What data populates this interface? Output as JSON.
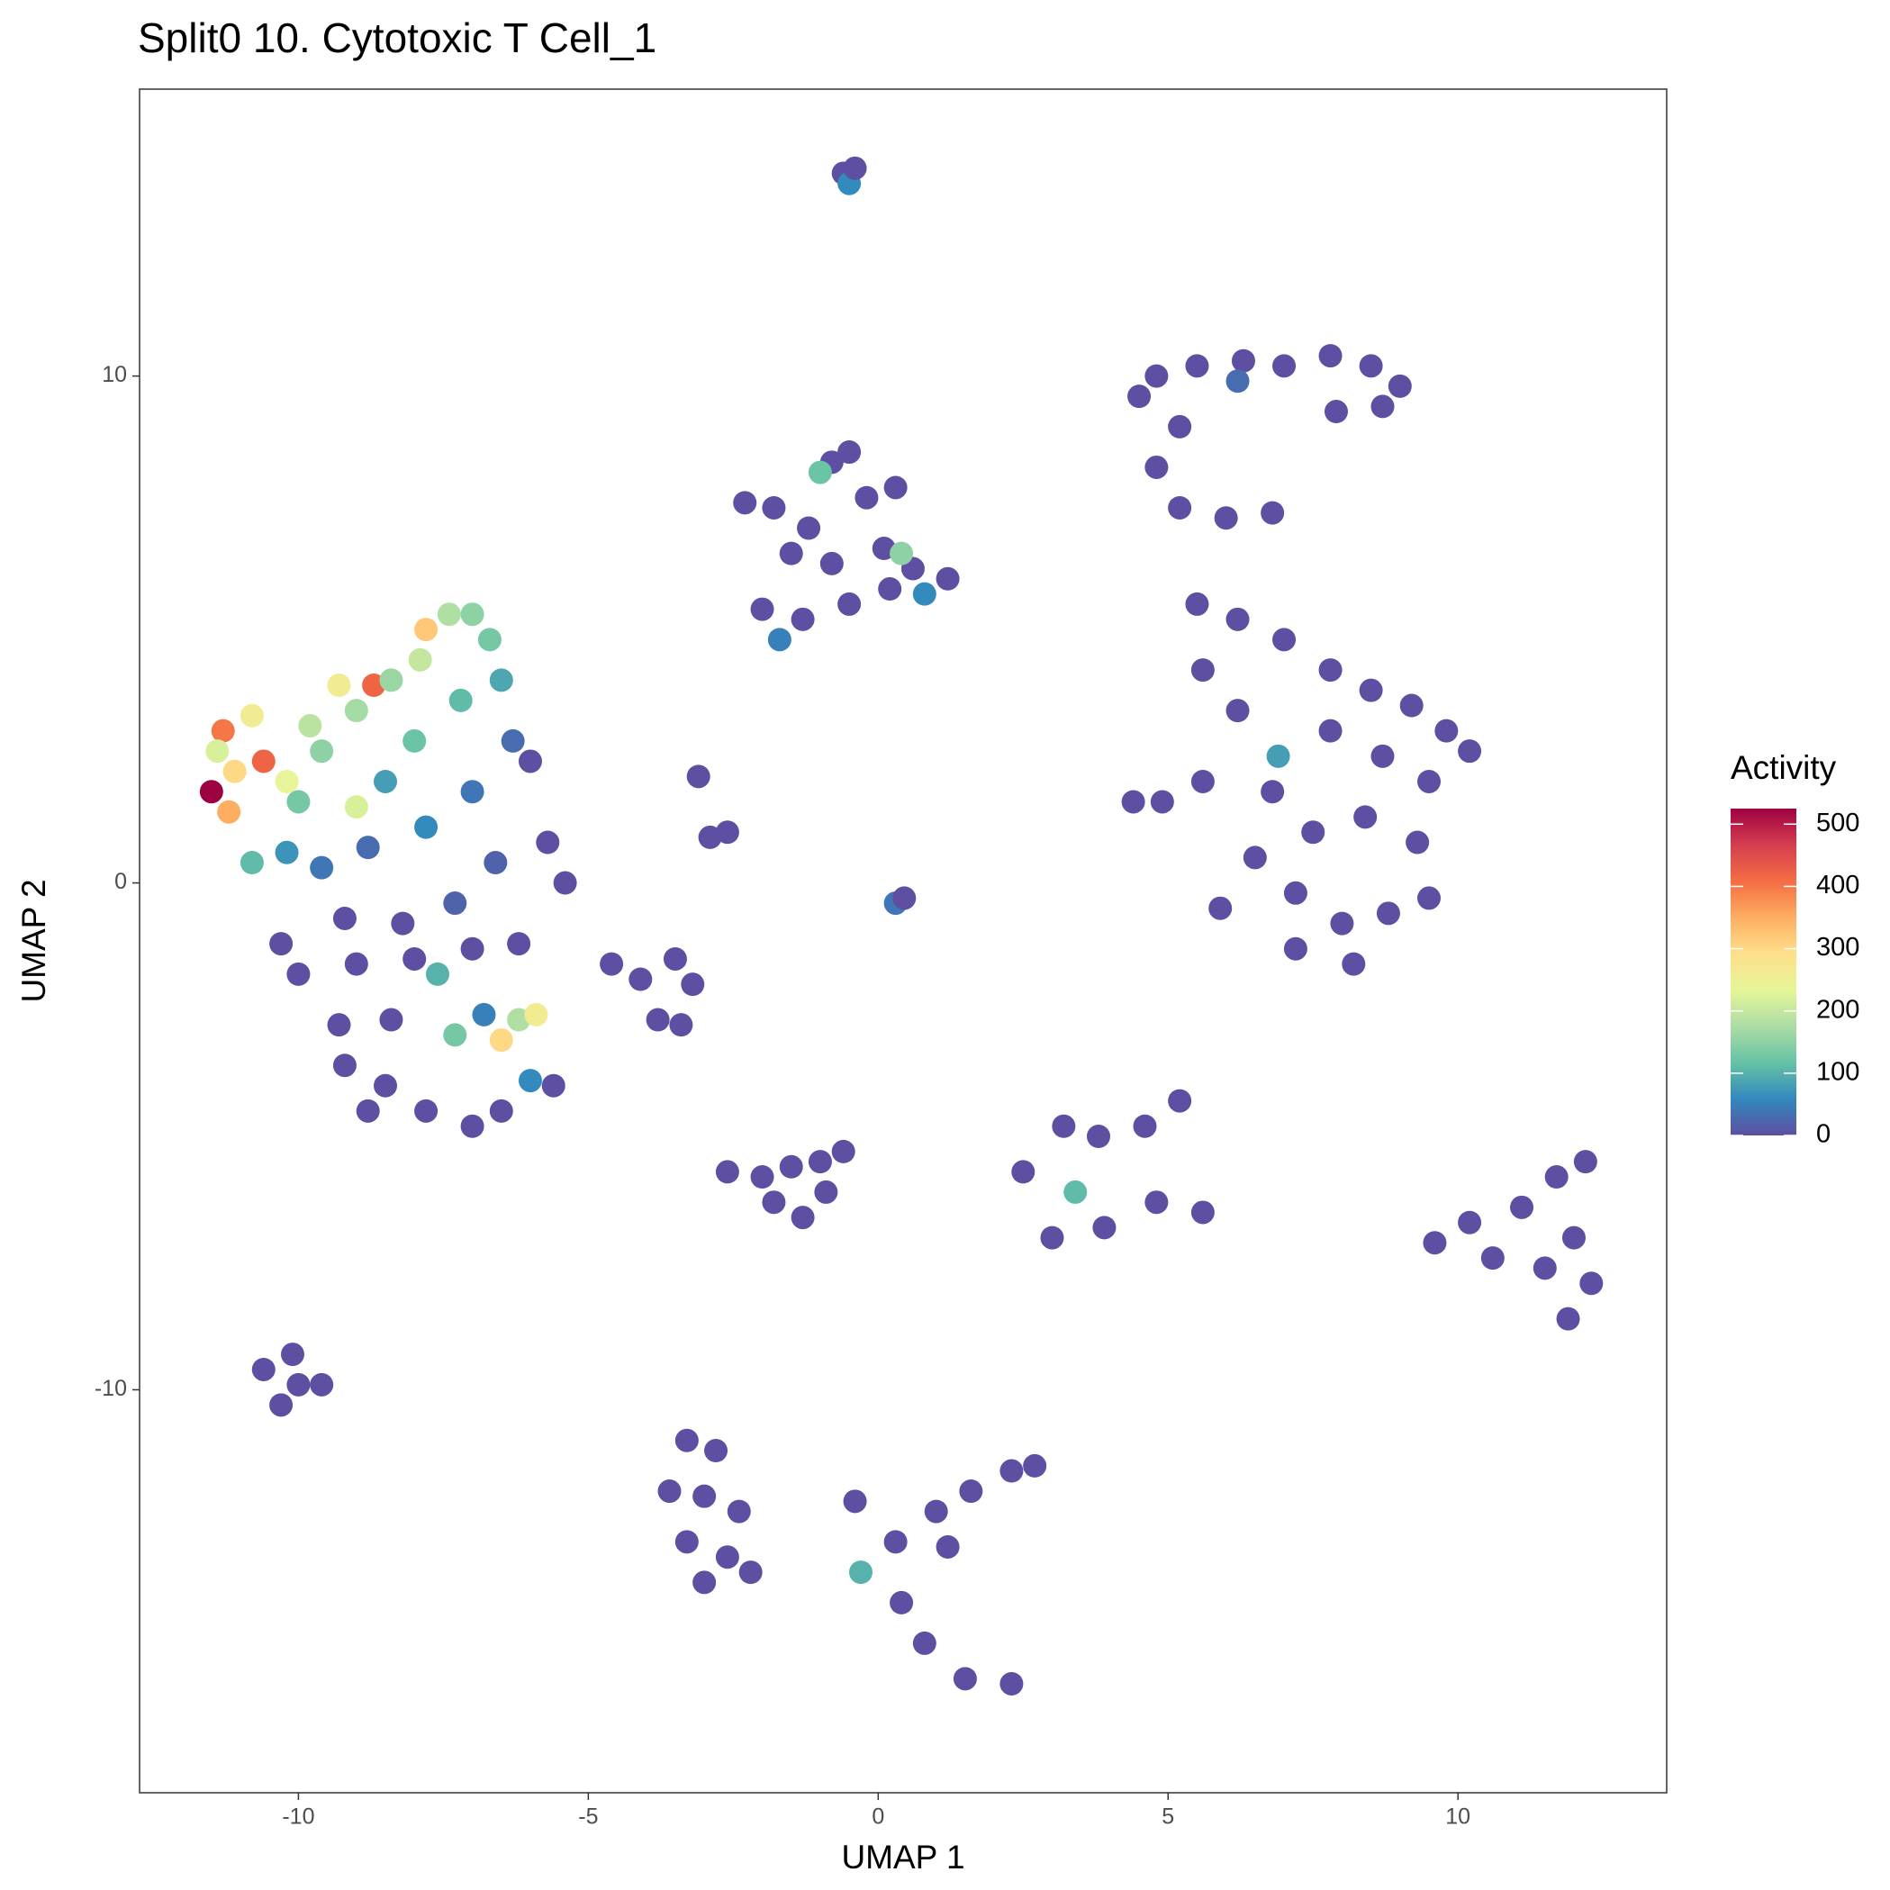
{
  "chart_data": {
    "type": "scatter",
    "title": "Split0 10. Cytotoxic T Cell_1",
    "x_label": "UMAP 1",
    "y_label": "UMAP 2",
    "legend_title": "Activity",
    "xlim": [
      -12.74,
      13.6
    ],
    "ylim": [
      -17.95,
      15.66
    ],
    "xticks": [
      -10,
      -5,
      0,
      5,
      10
    ],
    "yticks": [
      -10,
      0,
      10
    ],
    "grid": false,
    "colorlim": [
      0,
      525
    ],
    "colorticks": [
      0,
      100,
      200,
      300,
      400,
      500
    ],
    "colorscale": [
      "#5e4fa2",
      "#3288bd",
      "#66c2a5",
      "#abdda4",
      "#e6f598",
      "#fee08b",
      "#fdae61",
      "#f46d43",
      "#d53e4f",
      "#9e0142"
    ],
    "x": [
      -0.6,
      -0.5,
      -0.4,
      -2.3,
      -1.8,
      -1.2,
      -0.8,
      -0.5,
      -1.0,
      -0.2,
      0.3,
      -1.5,
      -0.8,
      0.1,
      0.6,
      1.2,
      -2.0,
      -1.3,
      -0.5,
      0.2,
      0.8,
      -1.7,
      0.4,
      -11.5,
      -11.3,
      -11.1,
      -10.6,
      -10.8,
      -11.4,
      -11.2,
      -10.2,
      -9.8,
      -9.3,
      -8.7,
      -7.8,
      -7.4,
      -7.0,
      -6.7,
      -7.9,
      -8.4,
      -9.0,
      -9.6,
      -10.0,
      -9.0,
      -8.0,
      -7.2,
      -6.5,
      -8.5,
      -10.8,
      -10.2,
      -9.6,
      -8.8,
      -7.8,
      -7.0,
      -6.3,
      -6.0,
      -5.7,
      -5.4,
      -6.6,
      -7.3,
      -8.2,
      -9.2,
      -10.3,
      -10.0,
      -9.0,
      -8.0,
      -7.0,
      -6.2,
      -7.6,
      -6.8,
      -6.2,
      -5.9,
      -6.5,
      -7.3,
      -8.4,
      -9.3,
      -9.2,
      -8.5,
      -7.8,
      -7.0,
      -6.5,
      -8.8,
      -5.6,
      -6.0,
      4.5,
      4.8,
      5.5,
      6.3,
      7.0,
      7.8,
      8.5,
      9.0,
      8.7,
      7.9,
      6.2,
      5.2,
      4.8,
      5.2,
      6.0,
      6.8,
      5.5,
      6.2,
      7.0,
      7.8,
      8.5,
      9.2,
      9.8,
      10.2,
      9.5,
      8.7,
      7.8,
      6.9,
      6.2,
      5.6,
      6.8,
      7.5,
      8.4,
      9.3,
      6.5,
      7.2,
      8.0,
      8.8,
      9.5,
      7.2,
      8.2,
      5.9,
      4.4,
      4.9,
      5.6,
      -2.9,
      -2.6,
      -3.1,
      0.3,
      0.45,
      -4.6,
      -4.1,
      -3.5,
      -3.2,
      -3.8,
      -3.4,
      -2.6,
      -2.0,
      -1.5,
      -1.0,
      -0.6,
      -1.8,
      -1.3,
      -0.9,
      2.5,
      3.2,
      3.8,
      4.6,
      5.2,
      3.4,
      3.0,
      3.9,
      4.8,
      5.6,
      9.6,
      10.2,
      10.6,
      11.1,
      11.7,
      12.2,
      12.0,
      12.3,
      11.9,
      11.5,
      -10.6,
      -10.1,
      -9.6,
      -10.3,
      -10.0,
      -3.3,
      -2.8,
      -3.6,
      -3.0,
      -2.4,
      -3.3,
      -2.6,
      -3.0,
      -2.2,
      -0.4,
      -0.3,
      0.3,
      1.0,
      1.6,
      2.3,
      2.7,
      1.2,
      0.4,
      0.8,
      1.5,
      2.3
    ],
    "series": [
      {
        "values": [
          14.0,
          13.8,
          14.1,
          7.5,
          7.4,
          7.0,
          8.3,
          8.5,
          8.1,
          7.6,
          7.8,
          6.5,
          6.3,
          6.6,
          6.2,
          6.0,
          5.4,
          5.2,
          5.5,
          5.8,
          5.7,
          4.8,
          6.5,
          1.8,
          3.0,
          2.2,
          2.4,
          3.3,
          2.6,
          1.4,
          2.0,
          3.1,
          3.9,
          3.9,
          5.0,
          5.3,
          5.3,
          4.8,
          4.4,
          4.0,
          3.4,
          2.6,
          1.6,
          1.5,
          2.8,
          3.6,
          4.0,
          2.0,
          0.4,
          0.6,
          0.3,
          0.7,
          1.1,
          1.8,
          2.8,
          2.4,
          0.8,
          0.0,
          0.4,
          -0.4,
          -0.8,
          -0.7,
          -1.2,
          -1.8,
          -1.6,
          -1.5,
          -1.3,
          -1.2,
          -1.8,
          -2.6,
          -2.7,
          -2.6,
          -3.1,
          -3.0,
          -2.7,
          -2.8,
          -3.6,
          -4.0,
          -4.5,
          -4.8,
          -4.5,
          -4.5,
          -4.0,
          -3.9,
          9.6,
          10.0,
          10.2,
          10.3,
          10.2,
          10.4,
          10.2,
          9.8,
          9.4,
          9.3,
          9.9,
          9.0,
          8.2,
          7.4,
          7.2,
          7.3,
          5.5,
          5.2,
          4.8,
          4.2,
          3.8,
          3.5,
          3.0,
          2.6,
          2.0,
          2.5,
          3.0,
          2.5,
          3.4,
          4.2,
          1.8,
          1.0,
          1.3,
          0.8,
          0.5,
          -0.2,
          -0.8,
          -0.6,
          -0.3,
          -1.3,
          -1.6,
          -0.5,
          1.6,
          1.6,
          2.0,
          0.9,
          1.0,
          2.1,
          -0.4,
          -0.3,
          -1.6,
          -1.9,
          -1.5,
          -2.0,
          -2.7,
          -2.8,
          -5.7,
          -5.8,
          -5.6,
          -5.5,
          -5.3,
          -6.3,
          -6.6,
          -6.1,
          -5.7,
          -4.8,
          -5.0,
          -4.8,
          -4.3,
          -6.1,
          -7.0,
          -6.8,
          -6.3,
          -6.5,
          -7.1,
          -6.7,
          -7.4,
          -6.4,
          -5.8,
          -5.5,
          -7.0,
          -7.9,
          -8.6,
          -7.6,
          -9.6,
          -9.3,
          -9.9,
          -10.3,
          -9.9,
          -11.0,
          -11.2,
          -12.0,
          -12.1,
          -12.4,
          -13.0,
          -13.3,
          -13.8,
          -13.6,
          -12.2,
          -13.6,
          -13.0,
          -12.4,
          -12.0,
          -11.6,
          -11.5,
          -13.1,
          -14.2,
          -15.0,
          -15.7,
          -15.8
        ],
        "activity": [
          0,
          60,
          0,
          0,
          0,
          0,
          0,
          0,
          120,
          0,
          0,
          0,
          0,
          0,
          0,
          0,
          0,
          0,
          0,
          0,
          60,
          50,
          150,
          525,
          400,
          300,
          420,
          260,
          220,
          350,
          240,
          190,
          260,
          420,
          320,
          180,
          150,
          130,
          200,
          160,
          170,
          150,
          130,
          220,
          120,
          110,
          90,
          80,
          110,
          70,
          40,
          30,
          60,
          40,
          30,
          0,
          0,
          0,
          20,
          20,
          0,
          0,
          0,
          0,
          0,
          0,
          0,
          0,
          100,
          50,
          180,
          260,
          300,
          130,
          0,
          0,
          0,
          0,
          0,
          0,
          0,
          0,
          0,
          60,
          0,
          0,
          0,
          0,
          0,
          0,
          0,
          0,
          0,
          0,
          30,
          0,
          0,
          0,
          0,
          0,
          0,
          0,
          0,
          0,
          0,
          0,
          0,
          0,
          0,
          0,
          0,
          80,
          0,
          0,
          0,
          0,
          0,
          0,
          0,
          0,
          0,
          0,
          0,
          0,
          0,
          0,
          0,
          0,
          0,
          0,
          0,
          0,
          40,
          0,
          0,
          0,
          0,
          0,
          0,
          0,
          0,
          0,
          0,
          0,
          0,
          0,
          0,
          0,
          0,
          0,
          0,
          0,
          0,
          110,
          0,
          0,
          0,
          0,
          0,
          0,
          0,
          0,
          0,
          0,
          0,
          0,
          0,
          0,
          0,
          0,
          0,
          0,
          0,
          0,
          0,
          0,
          0,
          0,
          0,
          0,
          0,
          0,
          0,
          100,
          0,
          0,
          0,
          0,
          0,
          0,
          0,
          0,
          0,
          0
        ]
      }
    ]
  }
}
